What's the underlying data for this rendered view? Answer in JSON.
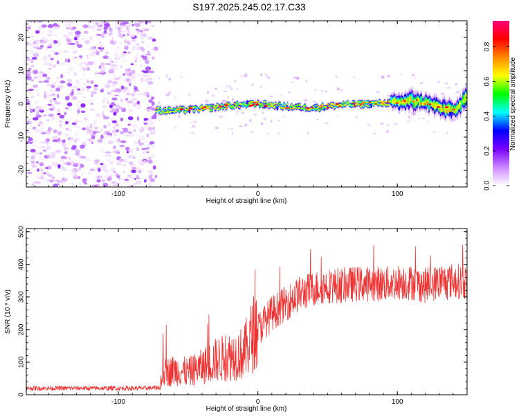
{
  "title": "S197.2025.245.02.17.C33",
  "chart_data": [
    {
      "type": "heatmap",
      "title": "S197.2025.245.02.17.C33",
      "xlabel": "Height of straight line (km)",
      "ylabel": "Frequency (Hz)",
      "xlim": [
        -166,
        150
      ],
      "ylim": [
        -25,
        25
      ],
      "x_ticks": [
        -100,
        0,
        100
      ],
      "x_tick_labels": [
        "-100",
        "0",
        "100"
      ],
      "y_ticks": [
        -20,
        -10,
        0,
        10,
        20
      ],
      "y_tick_labels": [
        "-20",
        "-10",
        "0",
        "10",
        "20"
      ],
      "noise_region_x": [
        -166,
        -73
      ],
      "signal_trace": {
        "x": [
          -73,
          -60,
          -40,
          -20,
          0,
          20,
          40,
          60,
          80,
          100,
          110,
          120,
          130,
          140,
          150
        ],
        "freq_hz": [
          -2,
          -2,
          -1.5,
          -0.5,
          0,
          -0.8,
          -1.2,
          -0.3,
          0,
          0.5,
          1,
          0.5,
          -1,
          -2,
          2
        ]
      },
      "colorbar": {
        "label": "Normalized spectral amplitude",
        "range": [
          0,
          0.95
        ],
        "ticks": [
          0.0,
          0.2,
          0.4,
          0.6,
          0.8
        ],
        "tick_labels": [
          "0.0",
          "0.2",
          "0.4",
          "0.6",
          "0.8"
        ],
        "colors": [
          "#ffffff",
          "#cc88ff",
          "#7a00ff",
          "#0000ff",
          "#00ffff",
          "#00ff00",
          "#ffff00",
          "#ff8800",
          "#ff0000",
          "#ff0077"
        ]
      }
    },
    {
      "type": "line",
      "xlabel": "Height of straight line (km)",
      "ylabel": "SNR (10 * v/v)",
      "xlim": [
        -166,
        150
      ],
      "ylim": [
        0,
        510
      ],
      "x_ticks": [
        -100,
        0,
        100
      ],
      "x_tick_labels": [
        "-100",
        "0",
        "100"
      ],
      "y_ticks": [
        0,
        100,
        200,
        300,
        400,
        500
      ],
      "y_tick_labels": [
        "0",
        "100",
        "200",
        "300",
        "400",
        "500"
      ],
      "color": "#ee3333",
      "series": [
        {
          "name": "SNR",
          "x": [
            -166,
            -140,
            -120,
            -100,
            -80,
            -70,
            -69,
            -60,
            -50,
            -40,
            -30,
            -20,
            -10,
            -5,
            0,
            10,
            20,
            30,
            40,
            50,
            60,
            70,
            80,
            90,
            100,
            110,
            120,
            130,
            140,
            150
          ],
          "y": [
            20,
            20,
            20,
            20,
            20,
            22,
            60,
            70,
            65,
            80,
            100,
            110,
            120,
            160,
            200,
            250,
            280,
            310,
            325,
            335,
            335,
            340,
            340,
            340,
            345,
            345,
            335,
            345,
            350,
            345
          ]
        }
      ]
    }
  ]
}
